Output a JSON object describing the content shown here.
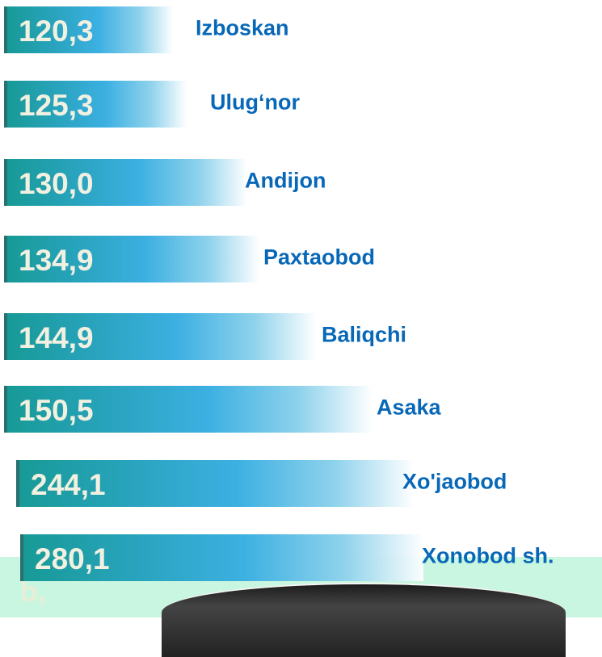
{
  "items": [
    {
      "value": "120,3",
      "name": "Izboskan"
    },
    {
      "value": "125,3",
      "name": "Ulug‘nor"
    },
    {
      "value": "130,0",
      "name": "Andijon"
    },
    {
      "value": "134,9",
      "name": "Paxtaobod"
    },
    {
      "value": "144,9",
      "name": "Baliqchi"
    },
    {
      "value": "150,5",
      "name": "Asaka"
    },
    {
      "value": "244,1",
      "name": "Xo'jaobod"
    },
    {
      "value": "280,1",
      "name": "Xonobod sh."
    }
  ],
  "footer_text": "b,"
}
